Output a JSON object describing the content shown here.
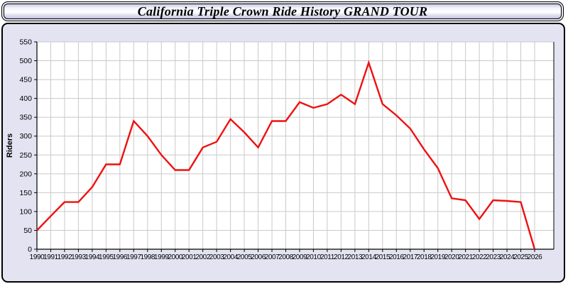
{
  "window": {
    "title": "California Triple Crown Ride History GRAND TOUR"
  },
  "chart_data": {
    "type": "line",
    "title": "California Triple Crown Ride History GRAND TOUR",
    "xlabel": "",
    "ylabel": "Riders",
    "ylim": [
      0,
      550
    ],
    "ytick_step": 50,
    "grid": true,
    "legend_position": "none",
    "categories": [
      1990,
      1991,
      1992,
      1993,
      1994,
      1995,
      1996,
      1997,
      1998,
      1999,
      2000,
      2001,
      2002,
      2003,
      2004,
      2005,
      2006,
      2007,
      2008,
      2009,
      2010,
      2011,
      2012,
      2013,
      2014,
      2015,
      2016,
      2017,
      2018,
      2019,
      2020,
      2021,
      2022,
      2023,
      2024,
      2025,
      2026
    ],
    "values": [
      50,
      88,
      125,
      125,
      165,
      225,
      225,
      340,
      300,
      250,
      210,
      210,
      270,
      285,
      345,
      310,
      270,
      340,
      340,
      390,
      375,
      385,
      410,
      385,
      495,
      385,
      355,
      320,
      265,
      215,
      135,
      130,
      80,
      130,
      128,
      125,
      0
    ]
  },
  "colors": {
    "page_background": "#ffffff",
    "panel_fill": "#e3e3f2",
    "plot_background": "#ffffff",
    "gridline": "#c9c9c9",
    "axis": "#000000",
    "tick_label": "#000000",
    "line": "#ee1111"
  }
}
